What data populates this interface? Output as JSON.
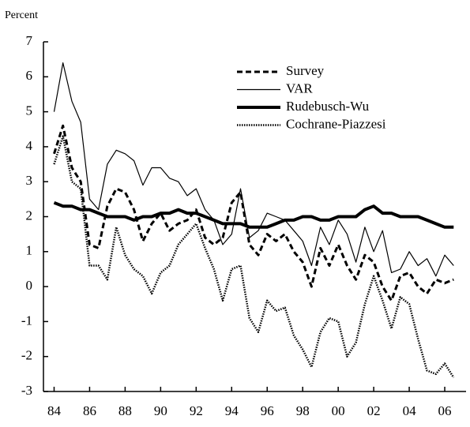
{
  "chart_data": {
    "type": "line",
    "y_label": "Percent",
    "x": [
      1984,
      1984.5,
      1985,
      1985.5,
      1986,
      1986.5,
      1987,
      1987.5,
      1988,
      1988.5,
      1989,
      1989.5,
      1990,
      1990.5,
      1991,
      1991.5,
      1992,
      1992.5,
      1993,
      1993.5,
      1994,
      1994.5,
      1995,
      1995.5,
      1996,
      1996.5,
      1997,
      1997.5,
      1998,
      1998.5,
      1999,
      1999.5,
      2000,
      2000.5,
      2001,
      2001.5,
      2002,
      2002.5,
      2003,
      2003.5,
      2004,
      2004.5,
      2005,
      2005.5,
      2006,
      2006.5
    ],
    "series": [
      {
        "name": "Survey",
        "color": "#000000",
        "style": "dashed",
        "width": 3,
        "values": [
          3.8,
          4.6,
          3.4,
          3.0,
          1.2,
          1.1,
          2.3,
          2.8,
          2.7,
          2.2,
          1.3,
          1.8,
          2.1,
          1.6,
          1.8,
          1.9,
          2.2,
          1.4,
          1.2,
          1.4,
          2.4,
          2.7,
          1.2,
          0.9,
          1.5,
          1.3,
          1.5,
          1.0,
          0.7,
          0.0,
          1.1,
          0.6,
          1.2,
          0.6,
          0.2,
          0.9,
          0.7,
          0.0,
          -0.4,
          0.3,
          0.4,
          0.0,
          -0.2,
          0.2,
          0.1,
          0.2
        ]
      },
      {
        "name": "VAR",
        "color": "#000000",
        "style": "solid",
        "width": 1.2,
        "values": [
          5.0,
          6.4,
          5.3,
          4.7,
          2.5,
          2.2,
          3.5,
          3.9,
          3.8,
          3.6,
          2.9,
          3.4,
          3.4,
          3.1,
          3.0,
          2.6,
          2.8,
          2.2,
          1.9,
          1.2,
          1.5,
          2.8,
          1.4,
          1.6,
          2.1,
          2.0,
          1.9,
          1.6,
          1.3,
          0.6,
          1.7,
          1.2,
          1.9,
          1.5,
          0.7,
          1.7,
          1.0,
          1.6,
          0.4,
          0.5,
          1.0,
          0.6,
          0.8,
          0.3,
          0.9,
          0.6
        ]
      },
      {
        "name": "Rudebusch-Wu",
        "color": "#000000",
        "style": "solid",
        "width": 4,
        "values": [
          2.4,
          2.3,
          2.3,
          2.2,
          2.2,
          2.1,
          2.0,
          2.0,
          2.0,
          1.9,
          2.0,
          2.0,
          2.1,
          2.1,
          2.2,
          2.1,
          2.1,
          2.0,
          1.9,
          1.8,
          1.8,
          1.8,
          1.7,
          1.7,
          1.7,
          1.8,
          1.9,
          1.9,
          2.0,
          2.0,
          1.9,
          1.9,
          2.0,
          2.0,
          2.0,
          2.2,
          2.3,
          2.1,
          2.1,
          2.0,
          2.0,
          2.0,
          1.9,
          1.8,
          1.7,
          1.7
        ]
      },
      {
        "name": "Cochrane-Piazzesi",
        "color": "#000000",
        "style": "dotted",
        "width": 2.5,
        "values": [
          3.5,
          4.3,
          3.0,
          2.8,
          0.6,
          0.6,
          0.2,
          1.7,
          0.9,
          0.5,
          0.3,
          -0.2,
          0.4,
          0.6,
          1.2,
          1.5,
          1.8,
          1.1,
          0.5,
          -0.4,
          0.5,
          0.6,
          -0.9,
          -1.3,
          -0.4,
          -0.7,
          -0.6,
          -1.4,
          -1.8,
          -2.3,
          -1.3,
          -0.9,
          -1.0,
          -2.0,
          -1.6,
          -0.5,
          0.3,
          -0.4,
          -1.2,
          -0.3,
          -0.5,
          -1.5,
          -2.4,
          -2.5,
          -2.2,
          -2.6
        ]
      }
    ],
    "xlim": [
      1983.4,
      2007.2
    ],
    "ylim": [
      -3,
      7
    ],
    "xticks": [
      {
        "value": 1984,
        "label": "84"
      },
      {
        "value": 1986,
        "label": "86"
      },
      {
        "value": 1988,
        "label": "88"
      },
      {
        "value": 1990,
        "label": "90"
      },
      {
        "value": 1992,
        "label": "92"
      },
      {
        "value": 1994,
        "label": "94"
      },
      {
        "value": 1996,
        "label": "96"
      },
      {
        "value": 1998,
        "label": "98"
      },
      {
        "value": 2000,
        "label": "00"
      },
      {
        "value": 2002,
        "label": "02"
      },
      {
        "value": 2004,
        "label": "04"
      },
      {
        "value": 2006,
        "label": "06"
      }
    ],
    "yticks": [
      -3,
      -2,
      -1,
      0,
      1,
      2,
      3,
      4,
      5,
      6,
      7
    ],
    "legend": "upper right"
  }
}
